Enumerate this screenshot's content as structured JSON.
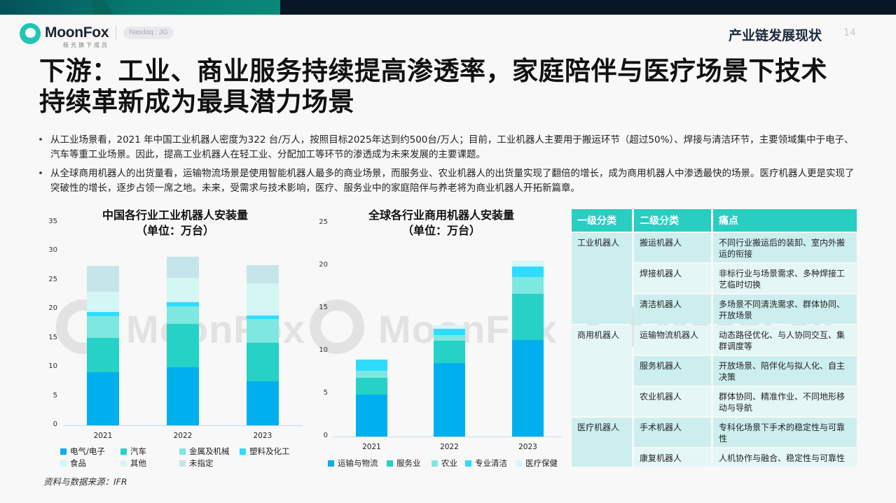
{
  "header": {
    "brand": "MoonFox",
    "brand_sub": "极光旗下成员",
    "exchange_badge": "Nasdaq : JG",
    "section": "产业链发展现状",
    "page_number": "14"
  },
  "title": "下游：工业、商业服务持续提高渗透率，家庭陪伴与医疗场景下技术持续革新成为最具潜力场景",
  "bullets": [
    "从工业场景看，2021 年中国工业机器人密度为322 台/万人，按照目标2025年达到约500台/万人；目前，工业机器人主要用于搬运环节（超过50%）、焊接与清洁环节，主要领域集中于电子、汽车等重工业场景。因此，提高工业机器人在轻工业、分配加工等环节的渗透成为未来发展的主要课题。",
    "从全球商用机器人的出货量看，运输物流场景是使用智能机器人最多的商业场景，而服务业、农业机器人的出货量实现了翻倍的增长，成为商用机器人中渗透最快的场景。医疗机器人更是实现了突破性的增长，逐步占领一席之地。未来，受需求与技术影响，医疗、服务业中的家庭陪伴与养老将为商业机器人开拓新篇章。"
  ],
  "watermark": "MoonFox",
  "source": "资料与数据来源：IFR",
  "chart_data": [
    {
      "type": "bar",
      "stacked": true,
      "title": "中国各行业工业机器人安装量（单位：万台）",
      "title_line1": "中国各行业工业机器人安装量",
      "title_line2": "（单位：万台）",
      "xlabel": "",
      "ylabel": "",
      "ylim": [
        0,
        35
      ],
      "yticks": [
        0,
        5,
        10,
        15,
        20,
        25,
        30,
        35
      ],
      "categories": [
        "2021",
        "2022",
        "2023"
      ],
      "series": [
        {
          "name": "电气/电子",
          "color": "#00b0ee",
          "values": [
            9.2,
            10.0,
            7.6
          ]
        },
        {
          "name": "汽车",
          "color": "#26d2c6",
          "values": [
            5.9,
            7.5,
            6.6
          ]
        },
        {
          "name": "金属及机械",
          "color": "#7de8e0",
          "values": [
            3.7,
            3.0,
            4.2
          ]
        },
        {
          "name": "塑料及化工",
          "color": "#2fdcfd",
          "values": [
            0.8,
            0.8,
            0.6
          ]
        },
        {
          "name": "食品",
          "color": "#cdf6fc",
          "values": [
            0.2,
            0.2,
            0.5
          ]
        },
        {
          "name": "其他",
          "color": "#d4f6f4",
          "values": [
            3.3,
            4.0,
            5.0
          ]
        },
        {
          "name": "未指定",
          "color": "#c6e5ea",
          "values": [
            4.4,
            3.6,
            3.2
          ]
        }
      ],
      "totals": [
        27.5,
        29.1,
        27.7
      ]
    },
    {
      "type": "bar",
      "stacked": true,
      "title": "全球各行业商用机器人安装量（单位：万台）",
      "title_line1": "全球各行业商用机器人安装量",
      "title_line2": "（单位：万台）",
      "xlabel": "",
      "ylabel": "",
      "ylim": [
        0,
        25
      ],
      "yticks": [
        0,
        5,
        10,
        15,
        20,
        25
      ],
      "categories": [
        "2021",
        "2022",
        "2023"
      ],
      "series": [
        {
          "name": "运输与物流",
          "color": "#00b0ee",
          "values": [
            4.9,
            8.6,
            11.3
          ]
        },
        {
          "name": "服务业",
          "color": "#26d2c6",
          "values": [
            2.0,
            2.6,
            5.4
          ]
        },
        {
          "name": "农业",
          "color": "#7de8e0",
          "values": [
            0.8,
            0.7,
            2.0
          ]
        },
        {
          "name": "专业清洁",
          "color": "#2fdcfd",
          "values": [
            1.3,
            0.7,
            1.2
          ]
        },
        {
          "name": "医疗保健",
          "color": "#d4f6fc",
          "values": [
            0.0,
            0.4,
            0.7
          ]
        }
      ],
      "totals": [
        9.0,
        13.0,
        20.6
      ]
    }
  ],
  "table": {
    "headers": [
      "一级分类",
      "二级分类",
      "痛点"
    ],
    "groups": [
      {
        "level1": "工业机器人",
        "rows": [
          {
            "level2": "搬运机器人",
            "pain": "不同行业搬运后的装卸、室内外搬运的衔接"
          },
          {
            "level2": "焊接机器人",
            "pain": "非标行业与场景需求、多种焊接工艺临时切换"
          },
          {
            "level2": "清洁机器人",
            "pain": "多场景不同清洗需求、群体协同、开放场景"
          }
        ]
      },
      {
        "level1": "商用机器人",
        "rows": [
          {
            "level2": "运输物流机器人",
            "pain": "动态路径优化、与人协同交互、集群调度等"
          },
          {
            "level2": "服务机器人",
            "pain": "开放场景、陪伴化与拟人化、自主决策"
          },
          {
            "level2": "农业机器人",
            "pain": "群体协同、精准作业、不同地形移动与导航"
          }
        ]
      },
      {
        "level1": "医疗机器人",
        "rows": [
          {
            "level2": "手术机器人",
            "pain": "专科化场景下手术的稳定性与可靠性"
          },
          {
            "level2": "康复机器人",
            "pain": "人机协作与融合、稳定性与可靠性"
          }
        ]
      }
    ]
  }
}
